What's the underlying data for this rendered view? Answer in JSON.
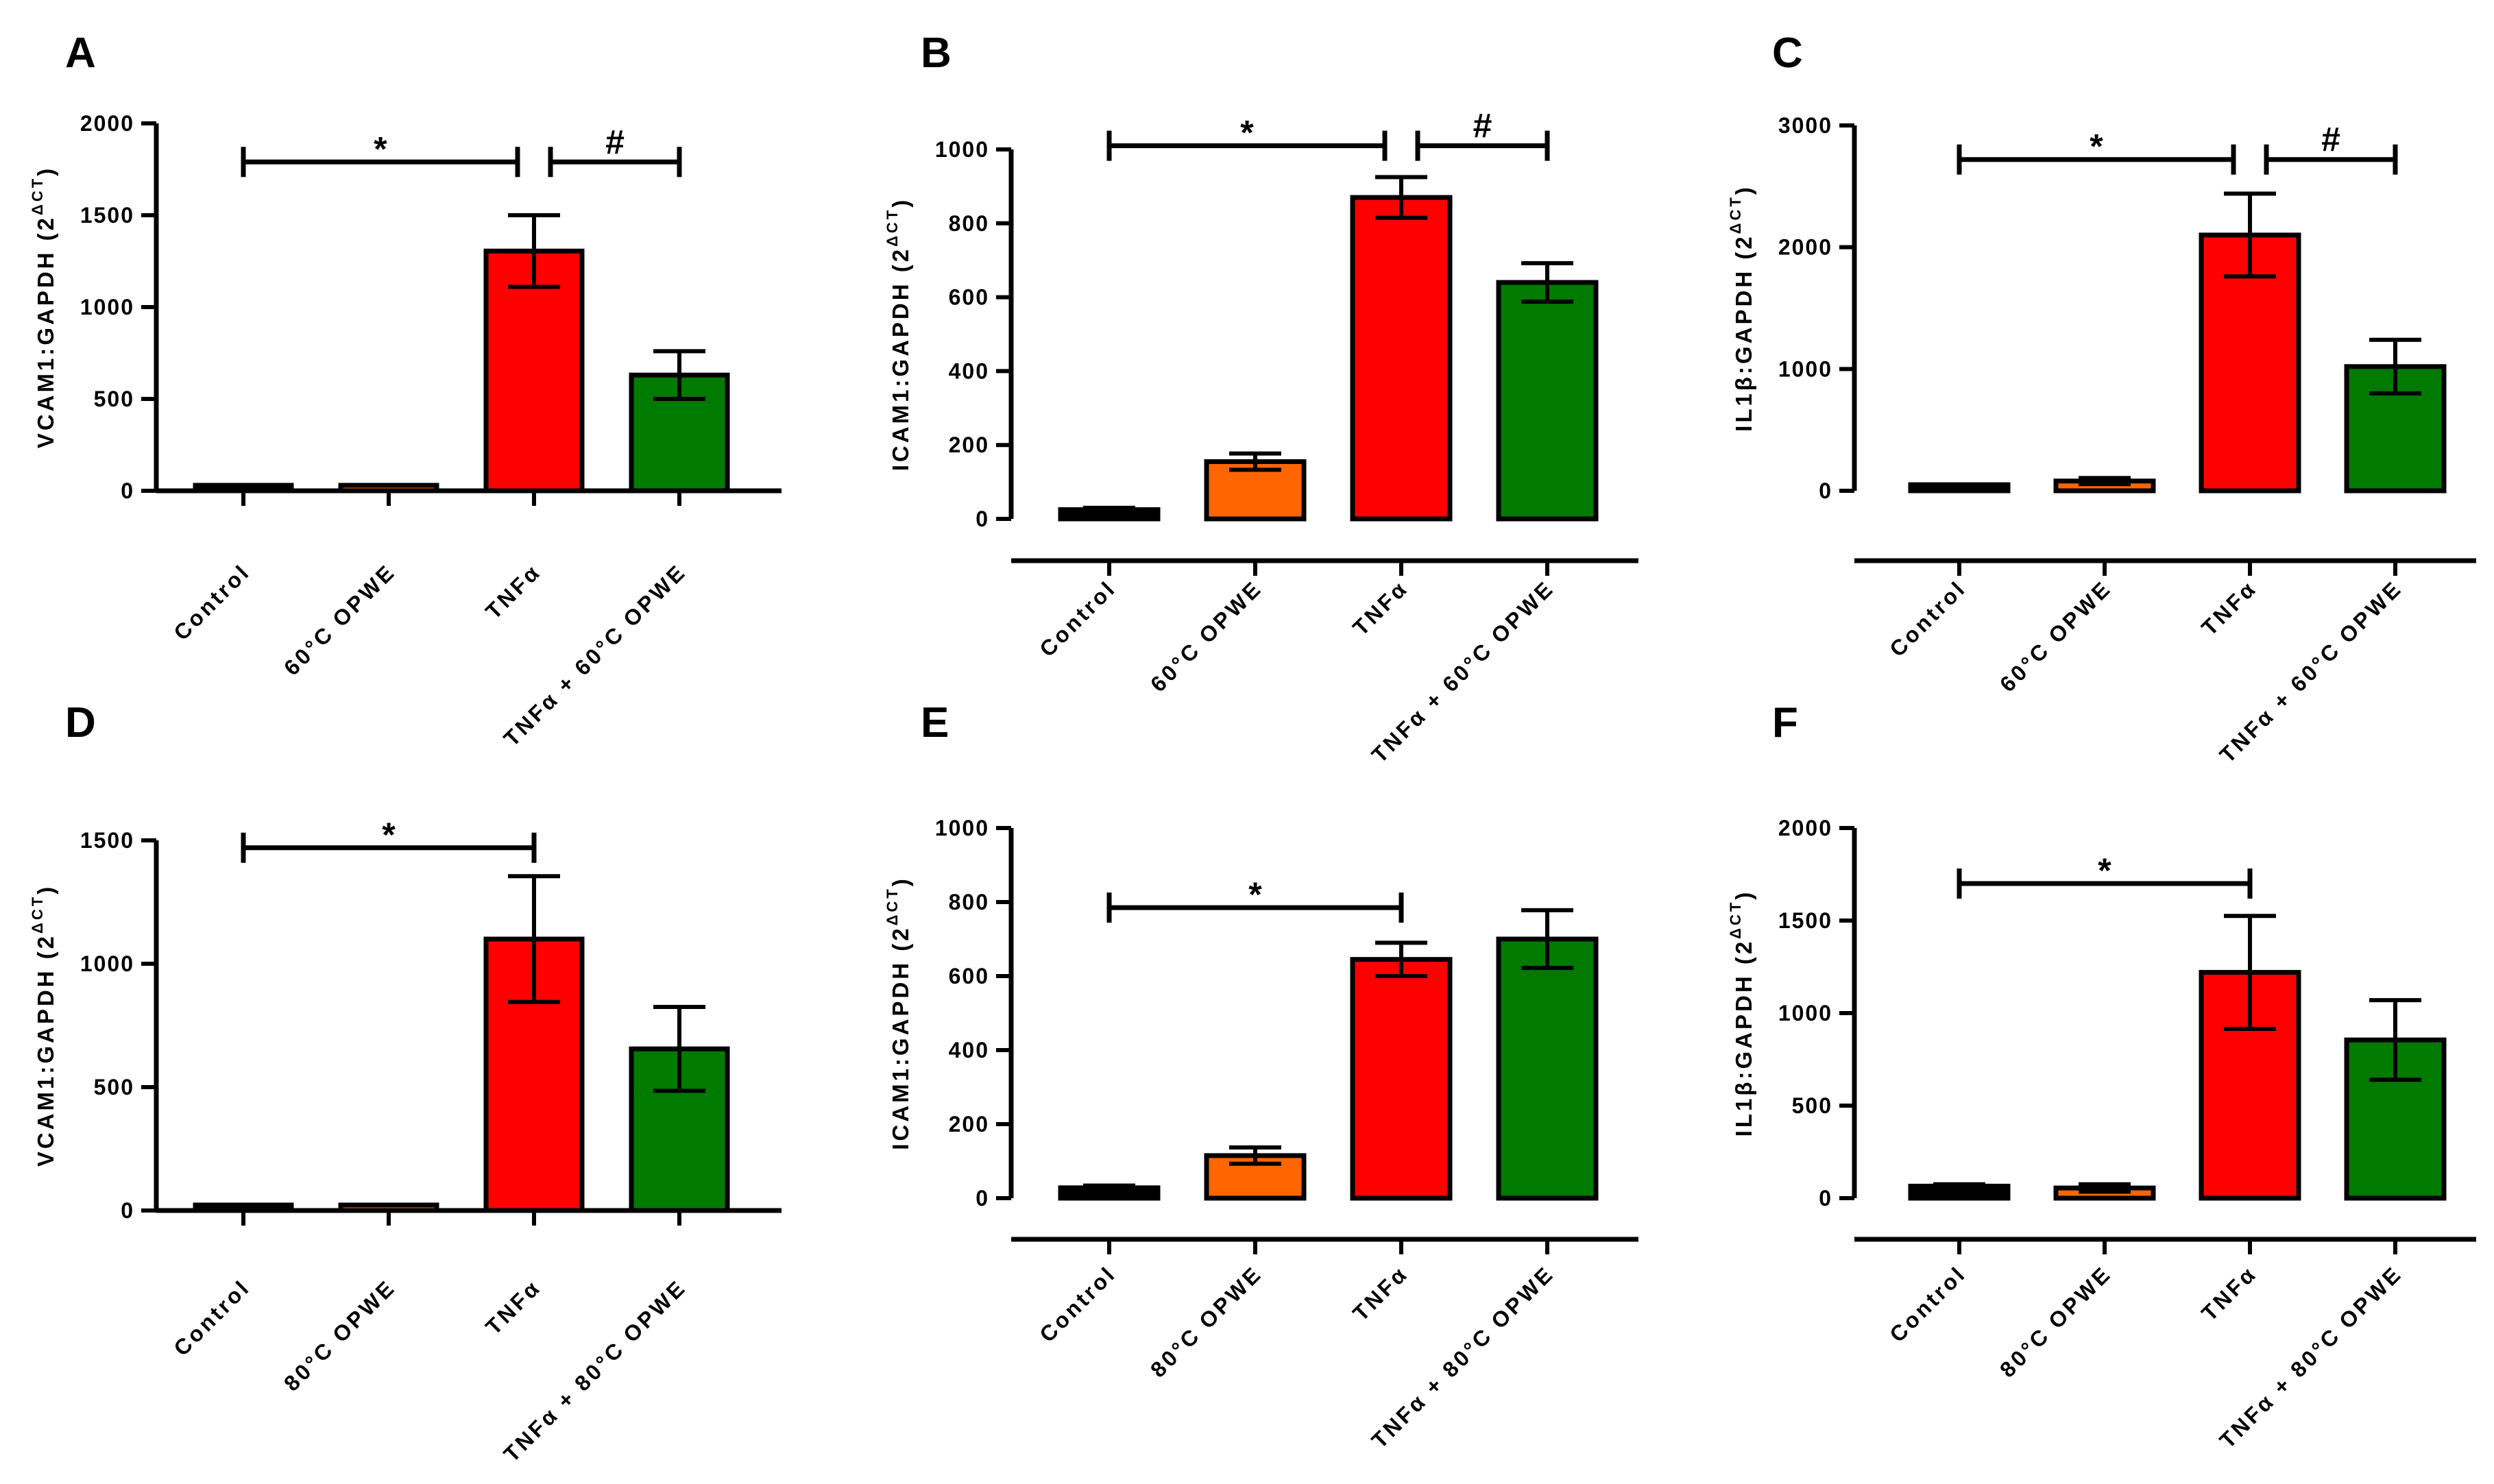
{
  "colors": {
    "control": "#000000",
    "opwe": "#ff6600",
    "tnf": "#ff0000",
    "combo": "#007a00"
  },
  "chart_data": [
    {
      "panel": "A",
      "type": "bar",
      "ylabel": "VCAM1:GAPDH (2",
      "ylabel_sup": "ΔCT",
      "ylabel_close": ")",
      "ylim": [
        0,
        2000
      ],
      "yticks": [
        0,
        500,
        1000,
        1500,
        2000
      ],
      "categories": [
        "Control",
        "60°C OPWE",
        "TNFα",
        "TNFα + 60°C OPWE"
      ],
      "values": [
        10,
        18,
        1305,
        630
      ],
      "errors": [
        5,
        8,
        195,
        130
      ],
      "significance": [
        {
          "from": 0,
          "to": 2,
          "label": "*",
          "level": 1790
        },
        {
          "from": 2,
          "to": 3,
          "label": "#",
          "level": 1790
        }
      ]
    },
    {
      "panel": "B",
      "type": "bar",
      "ylabel": "ICAM1:GAPDH (2",
      "ylabel_sup": "ΔCT",
      "ylabel_close": ")",
      "ylim": [
        0,
        1000
      ],
      "yticks": [
        0,
        200,
        400,
        600,
        800,
        1000
      ],
      "categories": [
        "Control",
        "60°C OPWE",
        "TNFα",
        "TNFα + 60°C OPWE"
      ],
      "values": [
        25,
        155,
        870,
        640
      ],
      "errors": [
        5,
        22,
        55,
        52
      ],
      "significance": [
        {
          "from": 0,
          "to": 2,
          "label": "*",
          "level": 1010
        },
        {
          "from": 2,
          "to": 3,
          "label": "#",
          "level": 1010
        }
      ]
    },
    {
      "panel": "C",
      "type": "bar",
      "ylabel": "IL1β:GAPDH (2",
      "ylabel_sup": "ΔCT",
      "ylabel_close": ")",
      "ylim": [
        0,
        3000
      ],
      "yticks": [
        0,
        1000,
        2000,
        3000
      ],
      "categories": [
        "Control",
        "60°C OPWE",
        "TNFα",
        "TNFα + 60°C OPWE"
      ],
      "values": [
        50,
        80,
        2100,
        1020
      ],
      "errors": [
        8,
        25,
        340,
        220
      ],
      "significance": [
        {
          "from": 0,
          "to": 2,
          "label": "*",
          "level": 2720
        },
        {
          "from": 2,
          "to": 3,
          "label": "#",
          "level": 2720
        }
      ]
    },
    {
      "panel": "D",
      "type": "bar",
      "ylabel": "VCAM1:GAPDH (2",
      "ylabel_sup": "ΔCT",
      "ylabel_close": ")",
      "ylim": [
        0,
        1500
      ],
      "yticks": [
        0,
        500,
        1000,
        1500
      ],
      "categories": [
        "Control",
        "80°C OPWE",
        "TNFα",
        "TNFα + 80°C OPWE"
      ],
      "values": [
        8,
        12,
        1100,
        655
      ],
      "errors": [
        4,
        6,
        255,
        170
      ],
      "significance": [
        {
          "from": 0,
          "to": 2,
          "label": "*",
          "level": 1470
        }
      ]
    },
    {
      "panel": "E",
      "type": "bar",
      "ylabel": "ICAM1:GAPDH (2",
      "ylabel_sup": "ΔCT",
      "ylabel_close": ")",
      "ylim": [
        0,
        1000
      ],
      "yticks": [
        0,
        200,
        400,
        600,
        800,
        1000
      ],
      "categories": [
        "Control",
        "80°C OPWE",
        "TNFα",
        "TNFα + 80°C OPWE"
      ],
      "values": [
        28,
        115,
        645,
        700
      ],
      "errors": [
        6,
        22,
        45,
        78
      ],
      "significance": [
        {
          "from": 0,
          "to": 2,
          "label": "*",
          "level": 785
        }
      ]
    },
    {
      "panel": "F",
      "type": "bar",
      "ylabel": "IL1β:GAPDH (2",
      "ylabel_sup": "ΔCT",
      "ylabel_close": ")",
      "ylim": [
        0,
        2000
      ],
      "yticks": [
        0,
        500,
        1000,
        1500,
        2000
      ],
      "categories": [
        "Control",
        "80°C OPWE",
        "TNFα",
        "TNFα + 80°C OPWE"
      ],
      "values": [
        65,
        55,
        1220,
        855
      ],
      "errors": [
        10,
        20,
        305,
        215
      ],
      "significance": [
        {
          "from": 0,
          "to": 2,
          "label": "*",
          "level": 1700
        }
      ]
    }
  ]
}
